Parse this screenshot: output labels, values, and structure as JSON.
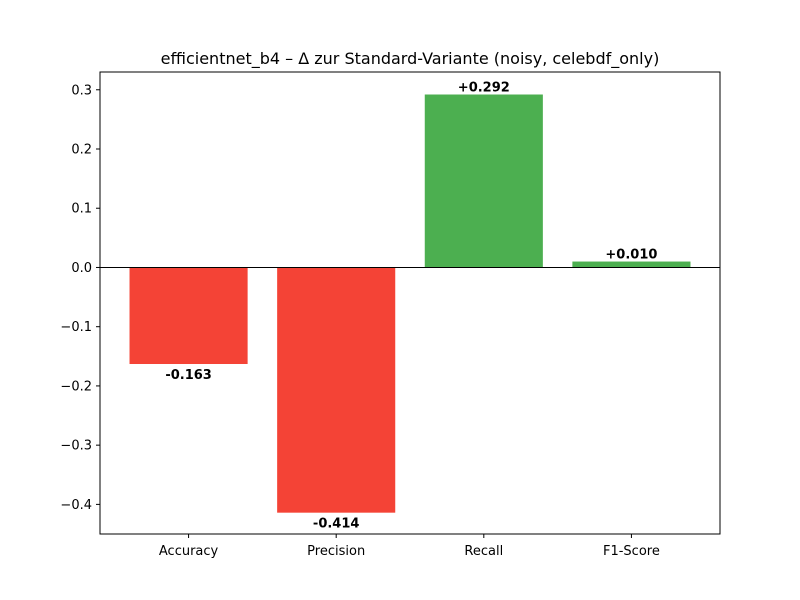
{
  "chart_data": {
    "type": "bar",
    "title": "efficientnet_b4 – Δ zur Standard-Variante (noisy, celebdf_only)",
    "xlabel": "",
    "ylabel": "",
    "categories": [
      "Accuracy",
      "Precision",
      "Recall",
      "F1-Score"
    ],
    "values": [
      -0.163,
      -0.414,
      0.292,
      0.01
    ],
    "data_labels": [
      "-0.163",
      "-0.414",
      "+0.292",
      "+0.010"
    ],
    "ylim": [
      -0.45,
      0.33
    ],
    "yticks": [
      -0.4,
      -0.3,
      -0.2,
      -0.1,
      0.0,
      0.1,
      0.2,
      0.3
    ],
    "ytick_labels": [
      "−0.4",
      "−0.3",
      "−0.2",
      "−0.1",
      "0.0",
      "0.1",
      "0.2",
      "0.3"
    ],
    "grid": false,
    "colors": {
      "negative": "#f44336",
      "positive": "#4caf50"
    }
  }
}
